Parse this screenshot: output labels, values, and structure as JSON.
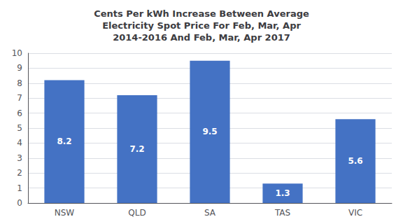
{
  "chart_data": {
    "type": "bar",
    "title": "Cents Per kWh Increase Between Average\nElectricity Spot Price For Feb, Mar, Apr\n2014-2016 And Feb, Mar, Apr 2017",
    "categories": [
      "NSW",
      "QLD",
      "SA",
      "TAS",
      "VIC"
    ],
    "values": [
      8.2,
      7.2,
      9.5,
      1.3,
      5.6
    ],
    "color": "#4472C4",
    "ylim": [
      0,
      10
    ],
    "yticks": [
      0,
      1,
      2,
      3,
      4,
      5,
      6,
      7,
      8,
      9,
      10
    ],
    "grid": true,
    "data_labels": true
  }
}
